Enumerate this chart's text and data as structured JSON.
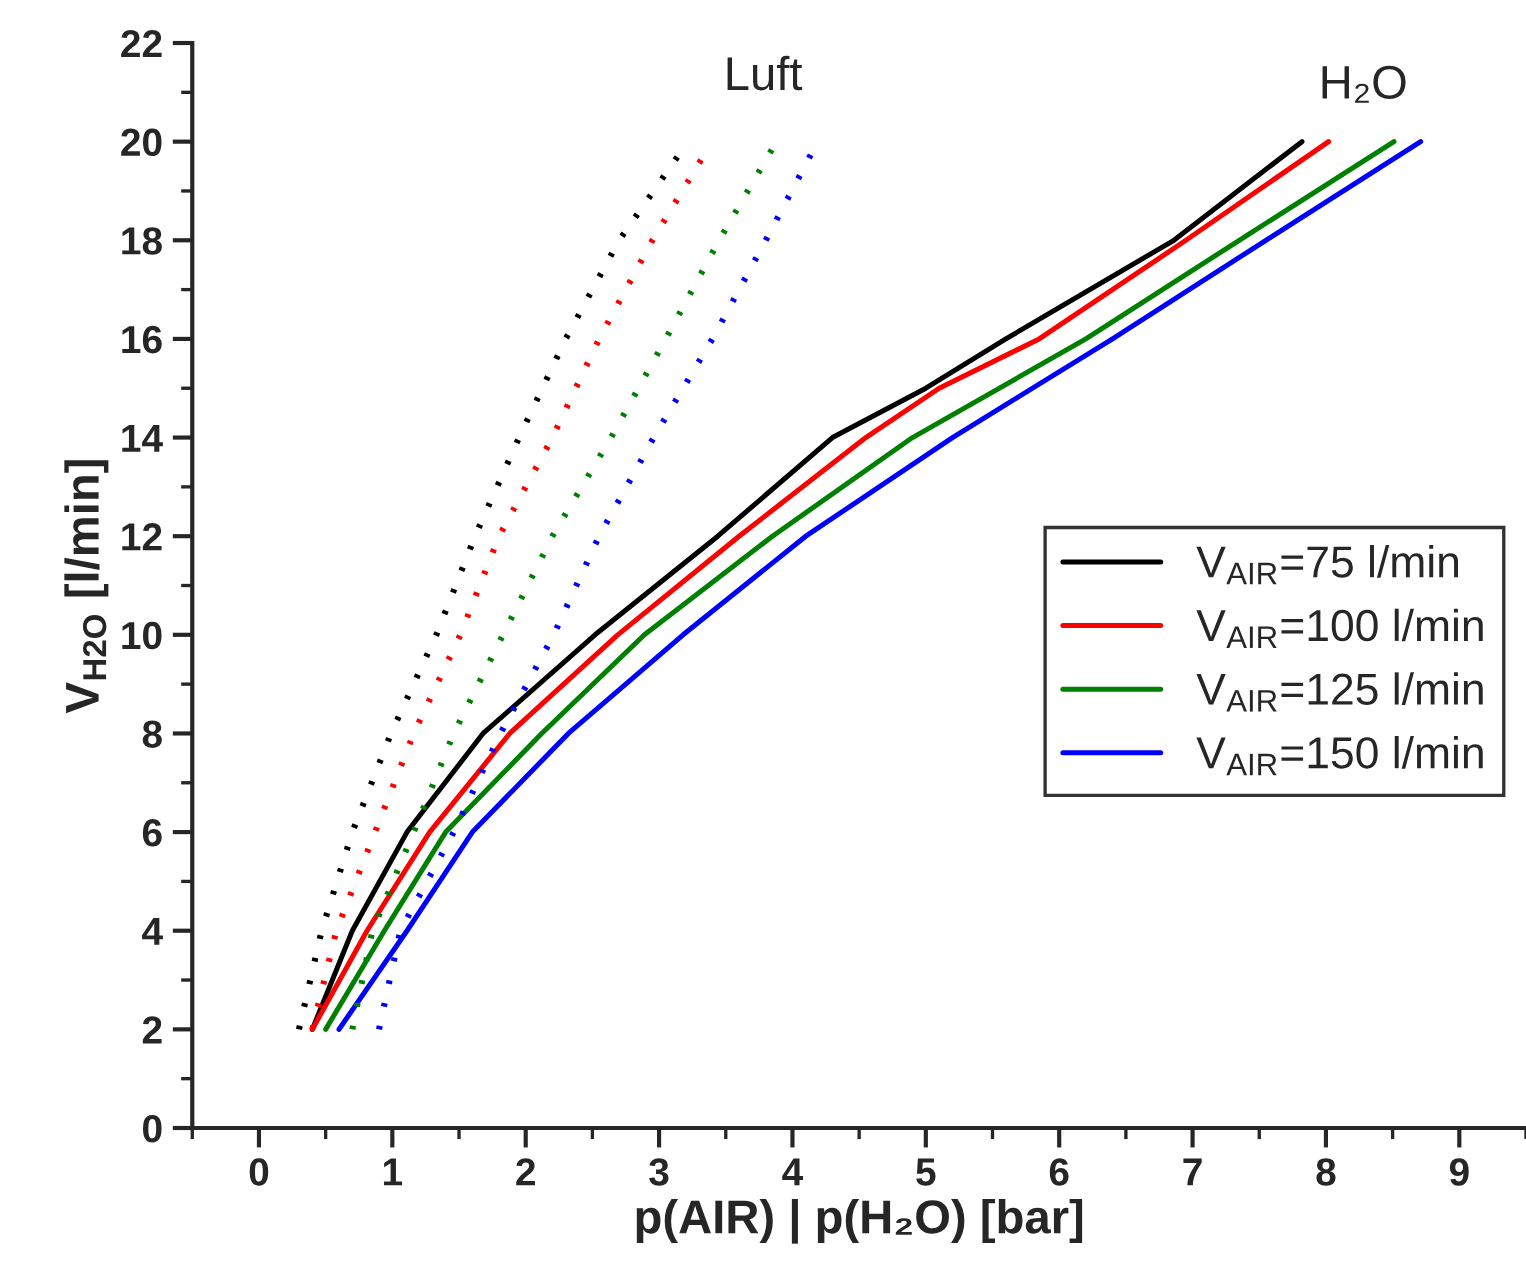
{
  "chart_data": {
    "type": "line",
    "xlabel": "p(AIR) | p(H₂O) [bar]",
    "ylabel": "V$_{H2O}$ [l/min]",
    "xlim": [
      -0.5,
      9.5
    ],
    "xticks": [
      0,
      1,
      2,
      3,
      4,
      5,
      6,
      7,
      8,
      9
    ],
    "ylim": [
      0,
      22
    ],
    "yticks": [
      0,
      2,
      4,
      6,
      8,
      10,
      12,
      14,
      16,
      18,
      20,
      22
    ],
    "grid": false,
    "legend": "right",
    "marker": "none",
    "annotations": [
      "Luft",
      "H₂O"
    ],
    "series": [
      {
        "name": "V$_{AIR}$=75 l/min",
        "color": "#000000",
        "line_style": "solid",
        "x": [
          0.4,
          0.7,
          1.11,
          1.68,
          2.52,
          3.44,
          4.3,
          5.0,
          5.6,
          6.86,
          7.82
        ],
        "values": [
          2,
          4,
          6,
          8,
          10,
          12,
          14,
          15,
          16,
          18,
          20
        ]
      },
      {
        "name": "V$_{AIR}$=100 l/min",
        "color": "#ff0000",
        "line_style": "solid",
        "x": [
          0.4,
          0.81,
          1.28,
          1.88,
          2.69,
          3.6,
          4.55,
          5.1,
          5.85,
          6.95,
          8.02
        ],
        "values": [
          2,
          4,
          6,
          8,
          10,
          12,
          14,
          15,
          16,
          18,
          20
        ]
      },
      {
        "name": "V$_{AIR}$=125 l/min",
        "color": "#008000",
        "line_style": "solid",
        "x": [
          0.5,
          0.94,
          1.4,
          2.12,
          2.89,
          3.85,
          4.9,
          6.2,
          7.35,
          8.51
        ],
        "values": [
          2,
          4,
          6,
          8,
          10,
          12,
          14,
          16,
          18,
          20
        ]
      },
      {
        "name": "V$_{AIR}$=150 l/min",
        "color": "#0000ff",
        "line_style": "solid",
        "x": [
          0.6,
          1.11,
          1.6,
          2.32,
          3.18,
          4.1,
          5.2,
          6.4,
          7.55,
          8.71
        ],
        "values": [
          2,
          4,
          6,
          8,
          10,
          12,
          14,
          16,
          18,
          20
        ]
      },
      {
        "color": "#000000",
        "line_style": "dotted",
        "x": [
          0.3,
          0.47,
          0.7,
          0.99,
          1.33,
          1.62,
          1.95,
          2.3,
          2.7,
          3.14
        ],
        "values": [
          2,
          4,
          6,
          8,
          10,
          12,
          14,
          16,
          18,
          19.7
        ]
      },
      {
        "color": "#ff0000",
        "line_style": "dotted",
        "x": [
          0.4,
          0.58,
          0.87,
          1.16,
          1.51,
          1.8,
          2.2,
          2.55,
          2.95,
          3.33
        ],
        "values": [
          2,
          4,
          6,
          8,
          10,
          12,
          14,
          16,
          18,
          19.7
        ]
      },
      {
        "color": "#008000",
        "line_style": "dotted",
        "x": [
          0.7,
          0.85,
          1.16,
          1.46,
          1.83,
          2.2,
          2.64,
          3.05,
          3.45,
          3.88
        ],
        "values": [
          2,
          4,
          6,
          8,
          10,
          12,
          14,
          16,
          18,
          20
        ]
      },
      {
        "color": "#0000ff",
        "line_style": "dotted",
        "x": [
          0.9,
          1.06,
          1.46,
          1.81,
          2.21,
          2.55,
          2.96,
          3.4,
          3.8,
          4.15
        ],
        "values": [
          2,
          4,
          6,
          8,
          10,
          12,
          14,
          16,
          18,
          19.8
        ]
      }
    ]
  }
}
